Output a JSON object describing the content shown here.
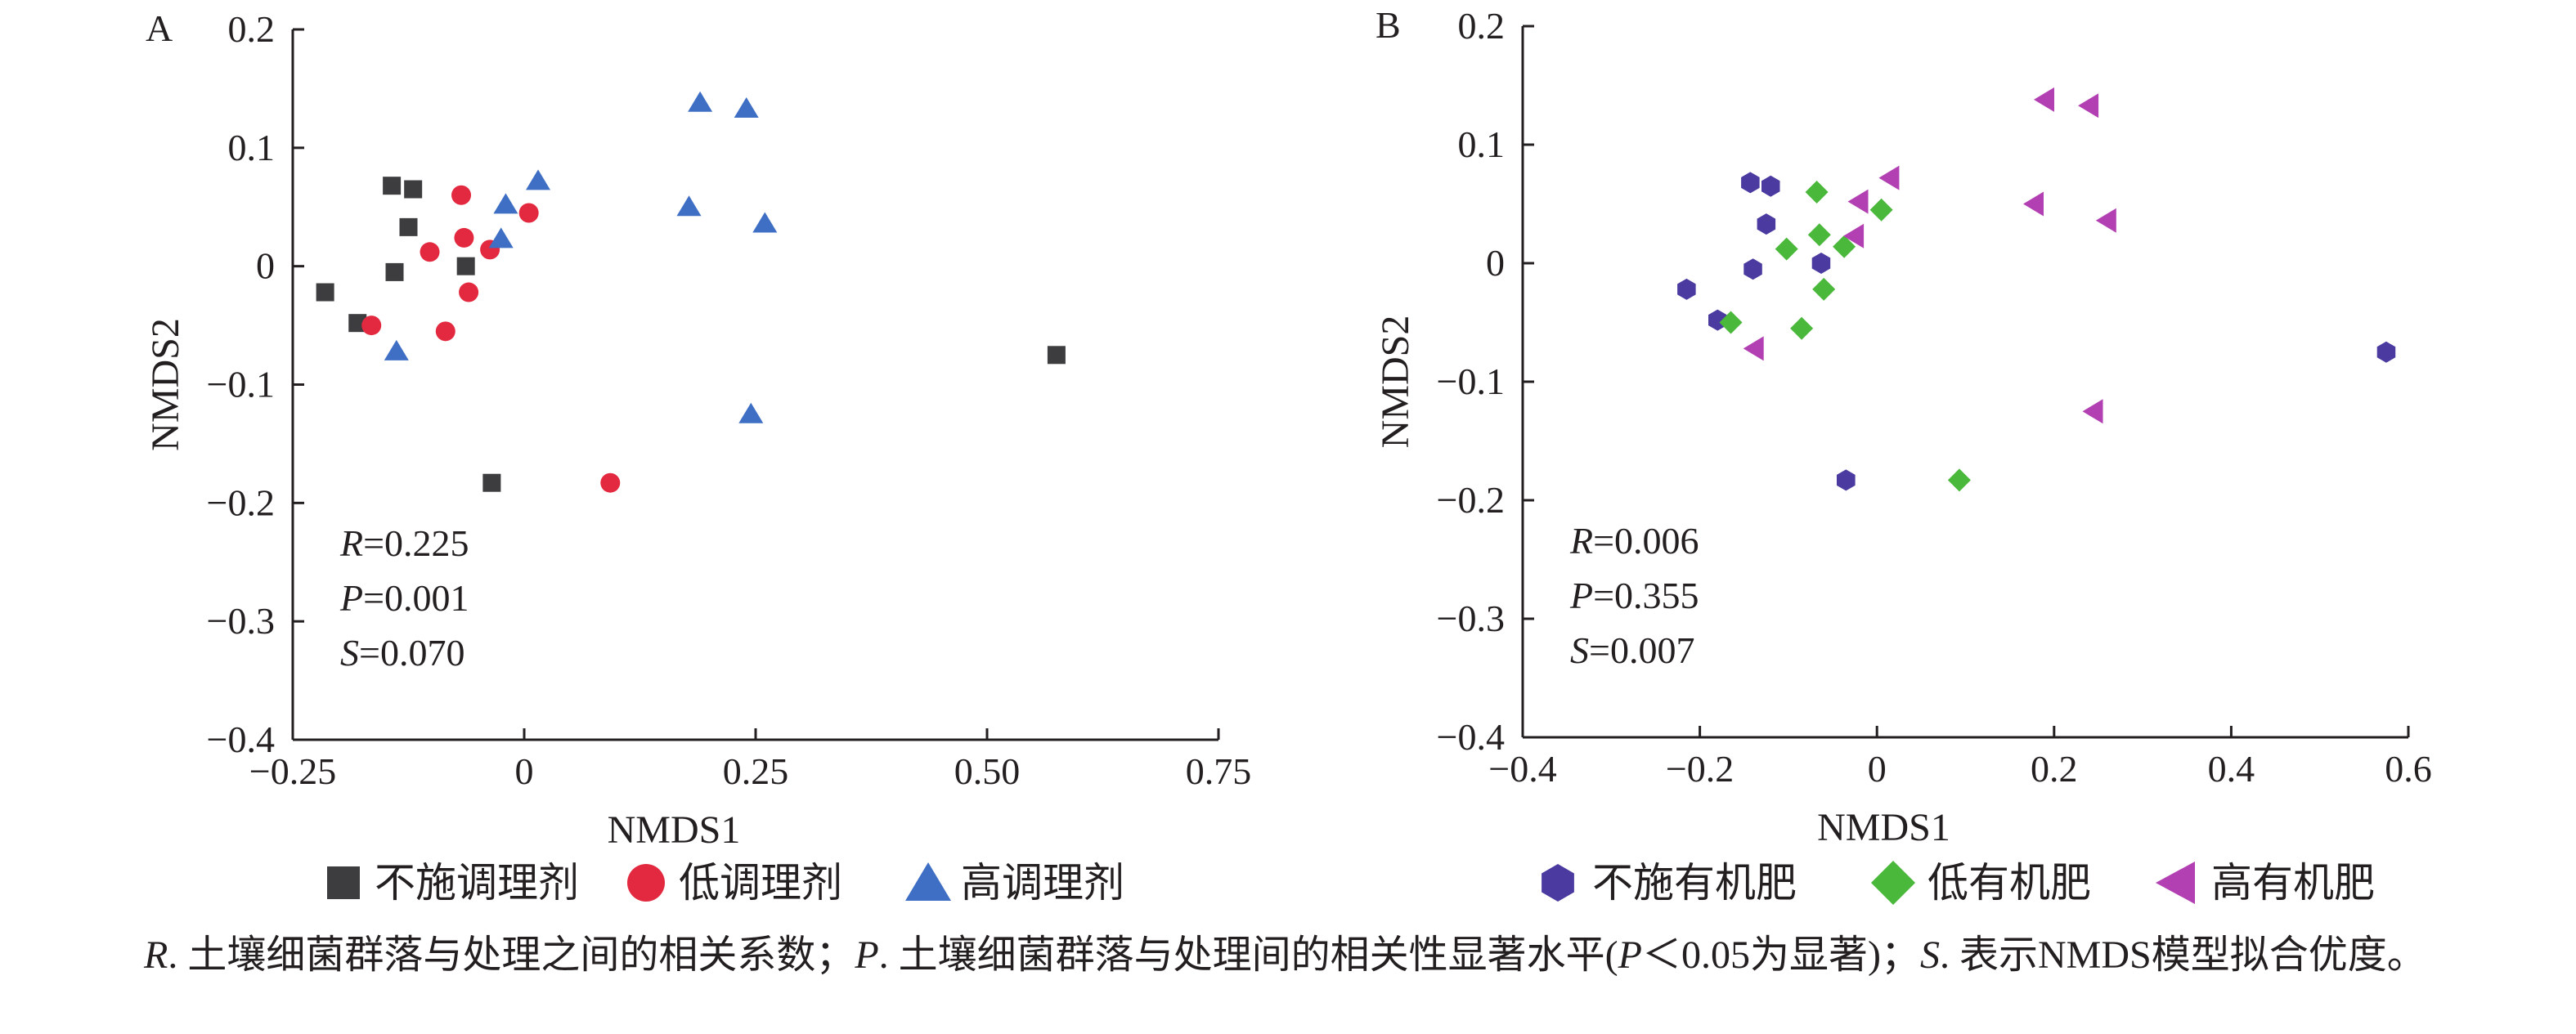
{
  "chart_data": [
    {
      "type": "scatter",
      "panel_label": "A",
      "xlabel": "NMDS1",
      "ylabel": "NMDS2",
      "xlim": [
        -0.25,
        0.75
      ],
      "ylim": [
        -0.4,
        0.2
      ],
      "xticks": [
        "-0.25",
        "0",
        "0.25",
        "0.50",
        "0.75"
      ],
      "xtick_values": [
        -0.25,
        0,
        0.25,
        0.5,
        0.75
      ],
      "yticks": [
        "0.2",
        "0.1",
        "0",
        "-0.1",
        "-0.2",
        "-0.3",
        "-0.4"
      ],
      "ytick_values": [
        0.2,
        0.1,
        0,
        -0.1,
        -0.2,
        -0.3,
        -0.4
      ],
      "stats": [
        {
          "symbol": "R",
          "value": "=0.225"
        },
        {
          "symbol": "P",
          "value": "=0.001"
        },
        {
          "symbol": "S",
          "value": "=0.070"
        }
      ],
      "legend": {
        "placement": "bottom"
      },
      "series": [
        {
          "name": "不施调理剂",
          "marker": "square",
          "color": "#3d3d40",
          "points": [
            [
              -0.215,
              -0.022
            ],
            [
              -0.18,
              -0.048
            ],
            [
              -0.143,
              0.068
            ],
            [
              -0.12,
              0.065
            ],
            [
              -0.125,
              0.033
            ],
            [
              -0.14,
              -0.005
            ],
            [
              -0.063,
              0.0
            ],
            [
              -0.035,
              -0.183
            ],
            [
              0.575,
              -0.075
            ]
          ]
        },
        {
          "name": "低调理剂",
          "marker": "circle",
          "color": "#e3293f",
          "points": [
            [
              -0.165,
              -0.05
            ],
            [
              -0.102,
              0.012
            ],
            [
              -0.085,
              -0.055
            ],
            [
              -0.068,
              0.06
            ],
            [
              -0.065,
              0.024
            ],
            [
              -0.06,
              -0.022
            ],
            [
              -0.037,
              0.014
            ],
            [
              0.005,
              0.045
            ],
            [
              0.093,
              -0.183
            ]
          ]
        },
        {
          "name": "高调理剂",
          "marker": "triangle",
          "color": "#3e6fc4",
          "points": [
            [
              -0.138,
              -0.072
            ],
            [
              -0.025,
              0.023
            ],
            [
              -0.02,
              0.052
            ],
            [
              0.015,
              0.072
            ],
            [
              0.178,
              0.05
            ],
            [
              0.19,
              0.138
            ],
            [
              0.24,
              0.133
            ],
            [
              0.26,
              0.036
            ],
            [
              0.245,
              -0.125
            ]
          ]
        }
      ]
    },
    {
      "type": "scatter",
      "panel_label": "B",
      "xlabel": "NMDS1",
      "ylabel": "NMDS2",
      "xlim": [
        -0.4,
        0.6
      ],
      "ylim": [
        -0.4,
        0.2
      ],
      "xticks": [
        "-0.4",
        "-0.2",
        "0",
        "0.2",
        "0.4",
        "0.6"
      ],
      "xtick_values": [
        -0.4,
        -0.2,
        0,
        0.2,
        0.4,
        0.6
      ],
      "yticks": [
        "0.2",
        "0.1",
        "0",
        "-0.1",
        "-0.2",
        "-0.3",
        "-0.4"
      ],
      "ytick_values": [
        0.2,
        0.1,
        0,
        -0.1,
        -0.2,
        -0.3,
        -0.4
      ],
      "stats": [
        {
          "symbol": "R",
          "value": "=0.006"
        },
        {
          "symbol": "P",
          "value": "=0.355"
        },
        {
          "symbol": "S",
          "value": "=0.007"
        }
      ],
      "legend": {
        "placement": "bottom"
      },
      "series": [
        {
          "name": "不施有机肥",
          "marker": "hexagon",
          "color": "#4b3aa0",
          "points": [
            [
              -0.215,
              -0.022
            ],
            [
              -0.18,
              -0.048
            ],
            [
              -0.143,
              0.068
            ],
            [
              -0.12,
              0.065
            ],
            [
              -0.125,
              0.033
            ],
            [
              -0.14,
              -0.005
            ],
            [
              -0.063,
              0.0
            ],
            [
              -0.035,
              -0.183
            ],
            [
              0.575,
              -0.075
            ]
          ]
        },
        {
          "name": "低有机肥",
          "marker": "diamond",
          "color": "#4ab83a",
          "points": [
            [
              -0.165,
              -0.05
            ],
            [
              -0.102,
              0.012
            ],
            [
              -0.085,
              -0.055
            ],
            [
              -0.068,
              0.06
            ],
            [
              -0.065,
              0.024
            ],
            [
              -0.06,
              -0.022
            ],
            [
              -0.037,
              0.014
            ],
            [
              0.005,
              0.045
            ],
            [
              0.093,
              -0.183
            ]
          ]
        },
        {
          "name": "高有机肥",
          "marker": "left-triangle",
          "color": "#b240b2",
          "points": [
            [
              -0.138,
              -0.072
            ],
            [
              -0.025,
              0.023
            ],
            [
              -0.02,
              0.052
            ],
            [
              0.015,
              0.072
            ],
            [
              0.178,
              0.05
            ],
            [
              0.19,
              0.138
            ],
            [
              0.24,
              0.133
            ],
            [
              0.26,
              0.036
            ],
            [
              0.245,
              -0.125
            ]
          ]
        }
      ]
    }
  ],
  "caption": {
    "r_symbol": "R",
    "r_text": ". 土壤细菌群落与处理之间的相关系数；",
    "p_symbol": "P",
    "p_text_1": ". 土壤细菌群落与处理间的相关性显著水平(",
    "p_symbol_2": "P",
    "p_text_2": "＜0.05为显著)；",
    "s_symbol": "S",
    "s_text": ". 表示NMDS模型拟合优度。"
  }
}
